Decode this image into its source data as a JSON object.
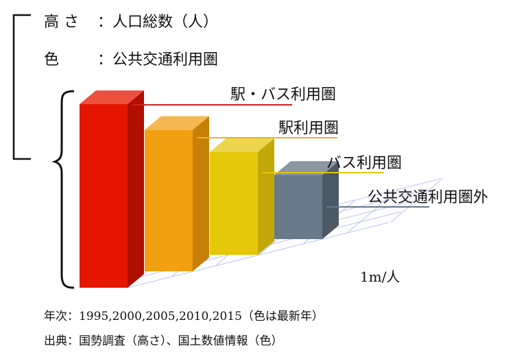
{
  "legend": {
    "height_key": "高 さ",
    "height_value": "：人口総数（人）",
    "color_key": "色",
    "color_value": "：公共交通利用圏"
  },
  "chart_data": {
    "type": "bar",
    "categories": [
      "駅・バス利用圏",
      "駅利用圏",
      "バス利用圏",
      "公共交通利用圏外"
    ],
    "values": [
      100,
      77,
      56,
      35
    ],
    "value_note": "relative heights estimated from bar geometry (no numeric axis printed)",
    "colors": {
      "front": [
        "#e41600",
        "#f0a010",
        "#e6c80a",
        "#6a7a8a"
      ],
      "top": [
        "#ee5040",
        "#f4b850",
        "#ecd64e",
        "#8a96a2"
      ],
      "side": [
        "#b00e00",
        "#c68008",
        "#c2a808",
        "#4c5864"
      ],
      "leader": [
        "#cc2222",
        "#f0b020",
        "#e6c40c",
        "#667788"
      ]
    },
    "scale_label": "1m/人",
    "grid": true
  },
  "notes": {
    "year_line": "年次：1995,2000,2005,2010,2015（色は最新年）",
    "source_line": "出典：国勢調査（高さ）、国土数値情報（色）"
  }
}
